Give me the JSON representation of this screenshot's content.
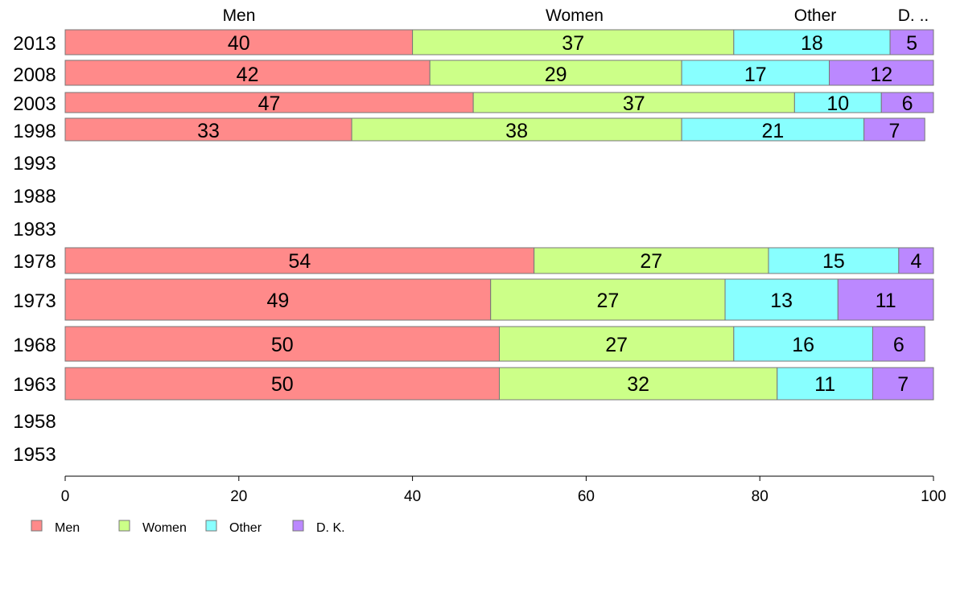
{
  "chart_data": {
    "type": "bar",
    "orientation": "horizontal",
    "stacked": true,
    "categories": [
      "2013",
      "2008",
      "2003",
      "1998",
      "1993",
      "1988",
      "1983",
      "1978",
      "1973",
      "1968",
      "1963",
      "1958",
      "1953"
    ],
    "series": [
      {
        "name": "Men",
        "color": "#ff8a8a",
        "values": [
          40,
          42,
          47,
          33,
          null,
          null,
          null,
          54,
          49,
          50,
          50,
          null,
          null
        ]
      },
      {
        "name": "Women",
        "color": "#ccff88",
        "values": [
          37,
          29,
          37,
          38,
          null,
          null,
          null,
          27,
          27,
          27,
          32,
          null,
          null
        ]
      },
      {
        "name": "Other",
        "color": "#88ffff",
        "values": [
          18,
          17,
          10,
          21,
          null,
          null,
          null,
          15,
          13,
          16,
          11,
          null,
          null
        ]
      },
      {
        "name": "D. K.",
        "color": "#bb88ff",
        "values": [
          5,
          12,
          6,
          7,
          null,
          null,
          null,
          4,
          11,
          6,
          7,
          null,
          null
        ]
      }
    ],
    "column_headers": [
      "Men",
      "Women",
      "Other",
      "D. .."
    ],
    "xlim": [
      0,
      100
    ],
    "xticks": [
      "0",
      "20",
      "40",
      "60",
      "80",
      "100"
    ],
    "grid": false,
    "legend_position": "bottom-left",
    "legend": [
      "Men",
      "Women",
      "Other",
      "D. K."
    ]
  }
}
